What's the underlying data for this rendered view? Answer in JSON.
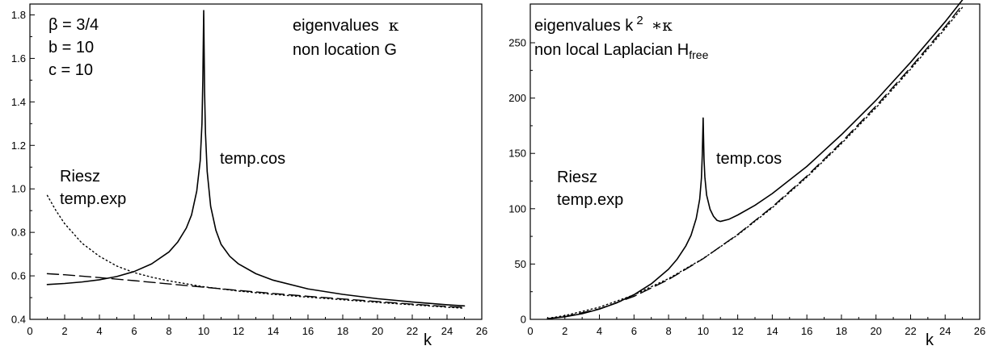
{
  "chart_data": [
    {
      "type": "line",
      "xlabel": "k",
      "ylabel": "",
      "xlim": [
        0,
        26
      ],
      "ylim": [
        0.4,
        1.85
      ],
      "xticks": [
        0,
        2,
        4,
        6,
        8,
        10,
        12,
        14,
        16,
        18,
        20,
        22,
        24,
        26
      ],
      "yticks": [
        0.4,
        0.6,
        0.8,
        1.0,
        1.2,
        1.4,
        1.6,
        1.8
      ],
      "ytick_labels": [
        "0.4",
        "0.6",
        "0.8",
        "1.0",
        "1.2",
        "1.4",
        "1.6",
        "1.8"
      ],
      "annotations": {
        "params": [
          "β = 3/4",
          "b = 10",
          "c = 10"
        ],
        "title_line1": "eigenvalues",
        "title_symbol": "κ",
        "title_line2": "non location G",
        "curve_label": "temp.cos",
        "dotted_label_1": "Riesz",
        "dashed_label_2": "temp.exp"
      },
      "series": [
        {
          "style": "solid",
          "x": [
            1,
            2,
            3,
            4,
            5,
            6,
            7,
            8,
            8.5,
            9,
            9.3,
            9.6,
            9.8,
            9.9,
            9.95,
            10,
            10.05,
            10.1,
            10.2,
            10.4,
            10.7,
            11,
            11.5,
            12,
            13,
            14,
            16,
            18,
            20,
            22,
            24,
            25
          ],
          "y": [
            0.56,
            0.565,
            0.572,
            0.582,
            0.597,
            0.62,
            0.655,
            0.71,
            0.755,
            0.82,
            0.88,
            0.99,
            1.13,
            1.3,
            1.5,
            1.82,
            1.45,
            1.26,
            1.08,
            0.92,
            0.81,
            0.745,
            0.69,
            0.655,
            0.61,
            0.58,
            0.54,
            0.515,
            0.495,
            0.48,
            0.467,
            0.462
          ]
        },
        {
          "style": "dashed",
          "x": [
            1,
            2,
            4,
            6,
            8,
            10,
            12,
            14,
            16,
            18,
            20,
            22,
            24,
            25
          ],
          "y": [
            0.61,
            0.605,
            0.592,
            0.578,
            0.563,
            0.548,
            0.533,
            0.519,
            0.506,
            0.494,
            0.482,
            0.47,
            0.459,
            0.455
          ]
        },
        {
          "style": "dotted",
          "x": [
            1,
            1.5,
            2,
            3,
            4,
            5,
            6,
            7,
            8,
            10,
            12,
            14,
            16,
            18,
            20,
            22,
            24,
            25
          ],
          "y": [
            0.97,
            0.9,
            0.84,
            0.75,
            0.69,
            0.645,
            0.615,
            0.594,
            0.577,
            0.55,
            0.53,
            0.515,
            0.502,
            0.49,
            0.478,
            0.467,
            0.456,
            0.451
          ]
        }
      ]
    },
    {
      "type": "line",
      "xlabel": "k",
      "ylabel": "",
      "xlim": [
        0,
        26
      ],
      "ylim": [
        0,
        285
      ],
      "xticks": [
        0,
        2,
        4,
        6,
        8,
        10,
        12,
        14,
        16,
        18,
        20,
        22,
        24,
        26
      ],
      "yticks": [
        0,
        50,
        100,
        150,
        200,
        250
      ],
      "ytick_labels": [
        "0",
        "50",
        "100",
        "150",
        "200",
        "250"
      ],
      "annotations": {
        "title_line1_prefix": "eigenvalues k",
        "title_sup": "2",
        "title_symbol": "∗κ",
        "title_line2": "non local Laplacian H",
        "title_sub": "free",
        "curve_label": "temp.cos",
        "dotted_label_1": "Riesz",
        "dashed_label_2": "temp.exp"
      },
      "series": [
        {
          "style": "solid",
          "x": [
            1,
            2,
            3,
            4,
            5,
            6,
            7,
            8,
            8.5,
            9,
            9.3,
            9.6,
            9.8,
            9.9,
            9.95,
            10,
            10.05,
            10.1,
            10.2,
            10.4,
            10.6,
            10.8,
            11,
            11.5,
            12,
            13,
            14,
            16,
            18,
            20,
            22,
            24,
            25
          ],
          "y": [
            0.6,
            2.3,
            5.1,
            9.3,
            14.9,
            22.3,
            32.1,
            45.4,
            54.5,
            66.4,
            76,
            91.2,
            108.5,
            127.4,
            148.5,
            182,
            145,
            128.6,
            112.4,
            99.5,
            93.1,
            89.5,
            88.5,
            90.5,
            94.3,
            103.1,
            113.7,
            138.2,
            166.9,
            198,
            232.3,
            269,
            288.7
          ]
        },
        {
          "style": "dashed",
          "x": [
            1,
            2,
            4,
            6,
            8,
            10,
            12,
            14,
            16,
            18,
            20,
            22,
            24,
            25
          ],
          "y": [
            0.61,
            2.4,
            9.5,
            20.8,
            36,
            54.8,
            76.8,
            101.7,
            129.5,
            160,
            192.8,
            227.5,
            264.4,
            284.4
          ]
        },
        {
          "style": "dotted",
          "x": [
            1,
            2,
            4,
            6,
            8,
            10,
            12,
            14,
            16,
            18,
            20,
            22,
            24,
            25
          ],
          "y": [
            0.97,
            3.4,
            11,
            22.1,
            36.9,
            55,
            76.3,
            100.9,
            128.5,
            158.8,
            191.2,
            226,
            262.7,
            282
          ]
        }
      ]
    }
  ]
}
